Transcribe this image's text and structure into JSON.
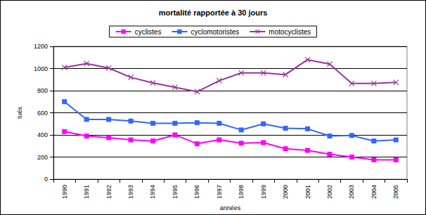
{
  "chart_data": {
    "type": "line",
    "title": "mortalité rapportée à 30 jours",
    "x_label": "années",
    "y_label": "tués",
    "categories": [
      "1990",
      "1991",
      "1992",
      "1993",
      "1994",
      "1995",
      "1996",
      "1997",
      "1998",
      "1999",
      "2000",
      "2001",
      "2002",
      "2003",
      "2004",
      "2005"
    ],
    "series": [
      {
        "name": "cyclistes",
        "color": "#ff00ff",
        "marker": "square",
        "values": [
          430,
          390,
          375,
          355,
          345,
          400,
          320,
          355,
          325,
          330,
          275,
          260,
          225,
          200,
          175,
          175
        ]
      },
      {
        "name": "cyclomotoristes",
        "color": "#3366ff",
        "marker": "square",
        "values": [
          700,
          540,
          540,
          525,
          505,
          505,
          510,
          505,
          445,
          500,
          460,
          455,
          390,
          395,
          345,
          355
        ]
      },
      {
        "name": "motocyclistes",
        "color": "#993399",
        "marker": "x",
        "values": [
          1010,
          1045,
          1005,
          920,
          870,
          830,
          790,
          890,
          960,
          960,
          945,
          1080,
          1040,
          865,
          865,
          875
        ]
      }
    ],
    "ylim": [
      0,
      1200
    ],
    "yticks": [
      0,
      200,
      400,
      600,
      800,
      1000,
      1200
    ],
    "grid": true,
    "legend": "top"
  }
}
